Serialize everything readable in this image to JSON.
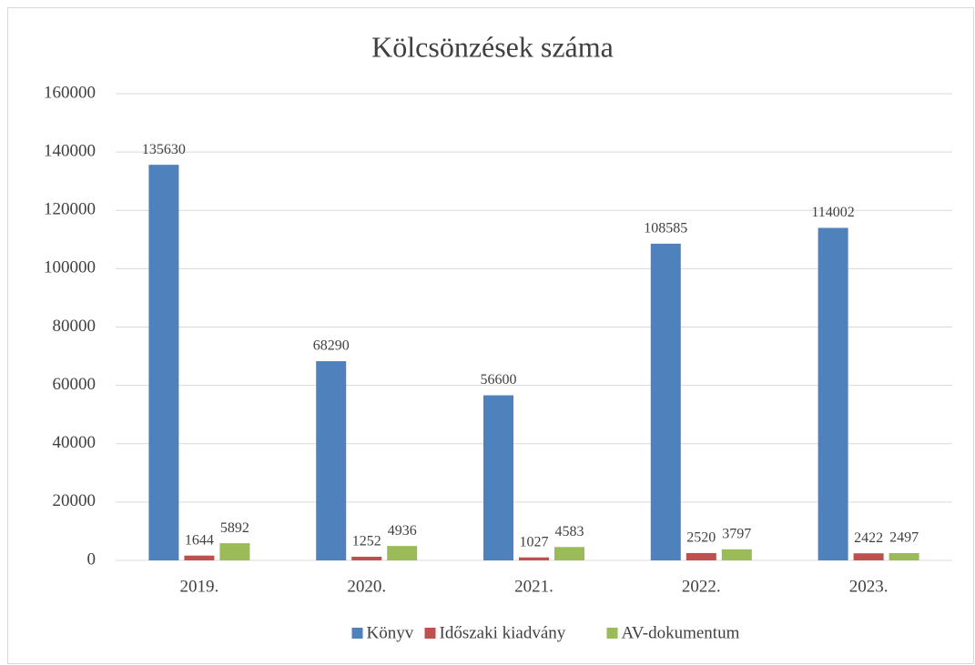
{
  "chart_data": {
    "type": "bar",
    "title": "Kölcsönzések száma",
    "categories": [
      "2019.",
      "2020.",
      "2021.",
      "2022.",
      "2023."
    ],
    "series": [
      {
        "name": "Könyv",
        "color": "#4f81bd",
        "values": [
          135630,
          68290,
          56600,
          108585,
          114002
        ]
      },
      {
        "name": "Időszaki kiadvány",
        "color": "#c0504d",
        "values": [
          1644,
          1252,
          1027,
          2520,
          2422
        ]
      },
      {
        "name": "AV-dokumentum",
        "color": "#9bbb59",
        "values": [
          5892,
          4936,
          4583,
          3797,
          2497
        ]
      }
    ],
    "ylim": [
      0,
      160000
    ],
    "yticks": [
      0,
      20000,
      40000,
      60000,
      80000,
      100000,
      120000,
      140000,
      160000
    ],
    "grid": true,
    "legend": "bottom"
  }
}
